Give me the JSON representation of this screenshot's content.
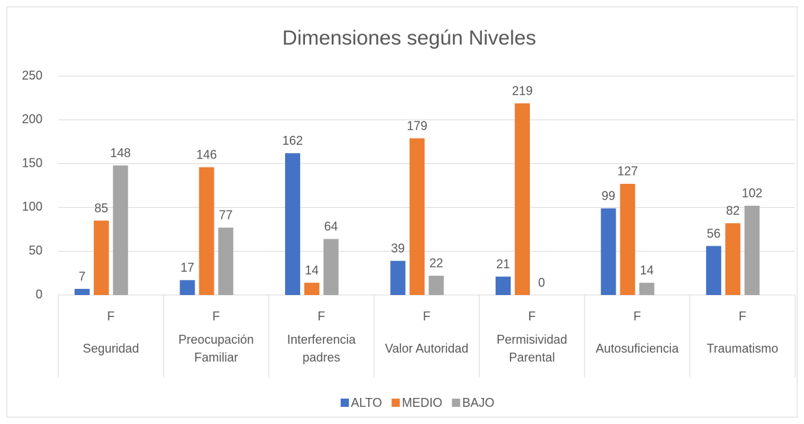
{
  "chart_data": {
    "type": "bar",
    "title": "Dimensiones según Niveles",
    "categories": [
      "Seguridad",
      "Preocupación Familiar",
      "Interferencia padres",
      "Valor Autoridad",
      "Permisividad Parental",
      "Autosuficiencia",
      "Traumatismo"
    ],
    "inner_categories": [
      "F",
      "F",
      "F",
      "F",
      "F",
      "F",
      "F"
    ],
    "series": [
      {
        "name": "ALTO",
        "color": "#4472c4",
        "values": [
          7,
          17,
          162,
          39,
          21,
          99,
          56
        ]
      },
      {
        "name": "MEDIO",
        "color": "#ed7d31",
        "values": [
          85,
          146,
          14,
          179,
          219,
          127,
          82
        ]
      },
      {
        "name": "BAJO",
        "color": "#a5a5a5",
        "values": [
          148,
          77,
          64,
          22,
          0,
          14,
          102
        ]
      }
    ],
    "ylim": [
      0,
      250
    ],
    "yticks": [
      0,
      50,
      100,
      150,
      200,
      250
    ],
    "grid": true,
    "legend": "bottom"
  }
}
